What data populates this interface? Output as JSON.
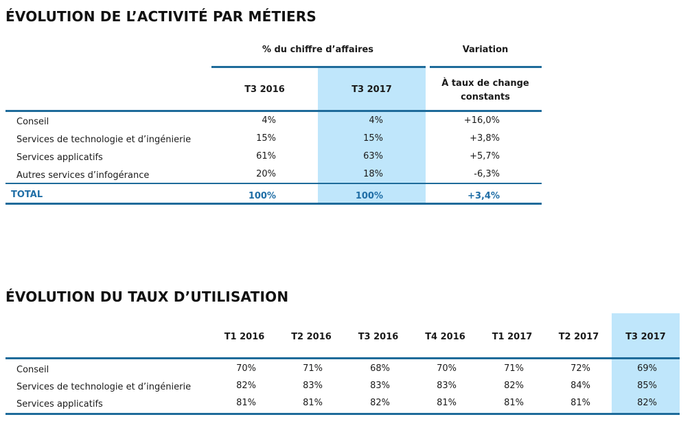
{
  "section1": {
    "title": "ÉVOLUTION DE L’ACTIVITÉ PAR MÉTIERS",
    "group_header_share": "% du chiffre d’affaires",
    "group_header_variation": "Variation",
    "col_t3_2016": "T3 2016",
    "col_t3_2017": "T3 2017",
    "col_variation_line1": "À taux de change",
    "col_variation_line2": "constants",
    "rows": [
      {
        "label": "Conseil",
        "t3_2016": "4%",
        "t3_2017": "4%",
        "variation": "+16,0%"
      },
      {
        "label": "Services de technologie et d’ingénierie",
        "t3_2016": "15%",
        "t3_2017": "15%",
        "variation": "+3,8%"
      },
      {
        "label": "Services applicatifs",
        "t3_2016": "61%",
        "t3_2017": "63%",
        "variation": "+5,7%"
      },
      {
        "label": "Autres services d’infogérance",
        "t3_2016": "20%",
        "t3_2017": "18%",
        "variation": "-6,3%"
      }
    ],
    "total": {
      "label": "TOTAL",
      "t3_2016": "100%",
      "t3_2017": "100%",
      "variation": "+3,4%"
    }
  },
  "section2": {
    "title": "ÉVOLUTION DU TAUX D’UTILISATION",
    "columns": [
      "T1 2016",
      "T2 2016",
      "T3 2016",
      "T4 2016",
      "T1 2017",
      "T2 2017",
      "T3 2017"
    ],
    "rows": [
      {
        "label": "Conseil",
        "values": [
          "70%",
          "71%",
          "68%",
          "70%",
          "71%",
          "72%",
          "69%"
        ]
      },
      {
        "label": "Services de technologie et d’ingénierie",
        "values": [
          "82%",
          "83%",
          "83%",
          "83%",
          "82%",
          "84%",
          "85%"
        ]
      },
      {
        "label": "Services applicatifs",
        "values": [
          "81%",
          "81%",
          "82%",
          "81%",
          "81%",
          "81%",
          "82%"
        ]
      }
    ]
  }
}
